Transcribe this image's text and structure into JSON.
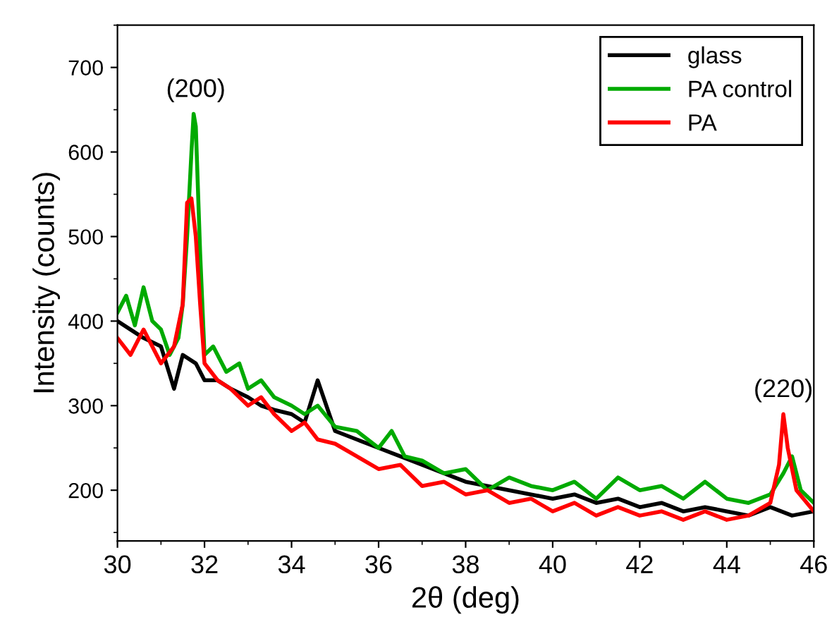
{
  "chart_data": {
    "type": "line",
    "xlabel": "2θ (deg)",
    "ylabel": "Intensity (counts)",
    "xlim": [
      30,
      46
    ],
    "xticks": [
      30,
      32,
      34,
      36,
      38,
      40,
      42,
      44,
      46
    ],
    "ylim": [
      140,
      750
    ],
    "yticks": [
      200,
      300,
      400,
      500,
      600,
      700
    ],
    "grid": false,
    "legend": "top right",
    "marker": "none",
    "line_style": "solid",
    "annotations": [
      {
        "text": "(200)",
        "x": 31.8,
        "y": 645
      },
      {
        "text": "(220)",
        "x": 45.3,
        "y": 290
      }
    ],
    "series": [
      {
        "name": "glass",
        "color": "#000000",
        "x": [
          30,
          30.3,
          30.6,
          31,
          31.3,
          31.5,
          31.8,
          32,
          32.3,
          32.6,
          33,
          33.3,
          33.6,
          34,
          34.3,
          34.6,
          35,
          35.5,
          36,
          36.5,
          37,
          37.5,
          38,
          38.5,
          39,
          39.5,
          40,
          40.5,
          41,
          41.5,
          42,
          42.5,
          43,
          43.5,
          44,
          44.5,
          45,
          45.5,
          46
        ],
        "values": [
          400,
          390,
          380,
          370,
          320,
          360,
          350,
          330,
          330,
          320,
          310,
          300,
          295,
          290,
          280,
          330,
          270,
          260,
          250,
          240,
          230,
          220,
          210,
          205,
          200,
          195,
          190,
          195,
          185,
          190,
          180,
          185,
          175,
          180,
          175,
          170,
          180,
          170,
          175
        ]
      },
      {
        "name": "PA control",
        "color": "#00aa00",
        "x": [
          30,
          30.2,
          30.4,
          30.6,
          30.8,
          31,
          31.2,
          31.4,
          31.5,
          31.6,
          31.7,
          31.75,
          31.8,
          31.9,
          32,
          32.2,
          32.5,
          32.8,
          33,
          33.3,
          33.6,
          34,
          34.3,
          34.6,
          35,
          35.5,
          36,
          36.3,
          36.6,
          37,
          37.5,
          38,
          38.5,
          39,
          39.5,
          40,
          40.5,
          41,
          41.5,
          42,
          42.5,
          43,
          43.5,
          44,
          44.5,
          45,
          45.3,
          45.5,
          45.7,
          46
        ],
        "values": [
          410,
          430,
          395,
          440,
          400,
          390,
          360,
          380,
          420,
          500,
          600,
          645,
          630,
          480,
          360,
          370,
          340,
          350,
          320,
          330,
          310,
          300,
          290,
          300,
          275,
          270,
          250,
          270,
          240,
          235,
          220,
          225,
          200,
          215,
          205,
          200,
          210,
          190,
          215,
          200,
          205,
          190,
          210,
          190,
          185,
          195,
          220,
          240,
          200,
          185
        ]
      },
      {
        "name": "PA",
        "color": "#ff0000",
        "x": [
          30,
          30.3,
          30.6,
          31,
          31.3,
          31.5,
          31.6,
          31.7,
          31.8,
          31.9,
          32,
          32.3,
          32.6,
          33,
          33.3,
          33.6,
          34,
          34.3,
          34.6,
          35,
          35.5,
          36,
          36.5,
          37,
          37.5,
          38,
          38.5,
          39,
          39.5,
          40,
          40.5,
          41,
          41.5,
          42,
          42.5,
          43,
          43.5,
          44,
          44.5,
          45,
          45.2,
          45.3,
          45.4,
          45.6,
          46
        ],
        "values": [
          380,
          360,
          390,
          350,
          370,
          420,
          540,
          545,
          500,
          420,
          350,
          330,
          320,
          300,
          310,
          290,
          270,
          280,
          260,
          255,
          240,
          225,
          230,
          205,
          210,
          195,
          200,
          185,
          190,
          175,
          185,
          170,
          180,
          170,
          175,
          165,
          175,
          165,
          170,
          185,
          230,
          290,
          250,
          200,
          175
        ]
      }
    ]
  }
}
